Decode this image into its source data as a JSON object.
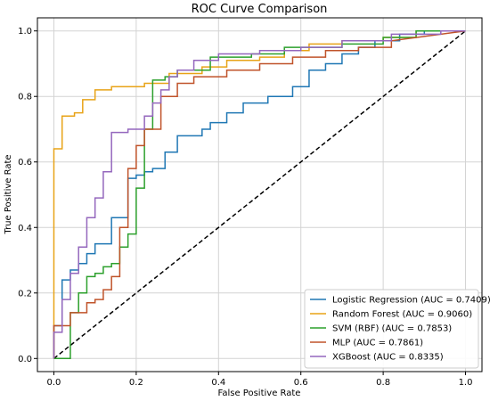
{
  "chart_data": {
    "type": "line",
    "title": "ROC Curve Comparison",
    "xlabel": "False Positive Rate",
    "ylabel": "True Positive Rate",
    "xlim": [
      -0.04,
      1.04
    ],
    "ylim": [
      -0.04,
      1.04
    ],
    "xticks": [
      0.0,
      0.2,
      0.4,
      0.6,
      0.8,
      1.0
    ],
    "yticks": [
      0.0,
      0.2,
      0.4,
      0.6,
      0.8,
      1.0
    ],
    "xtick_labels": [
      "0.0",
      "0.2",
      "0.4",
      "0.6",
      "0.8",
      "1.0"
    ],
    "ytick_labels": [
      "0.0",
      "0.2",
      "0.4",
      "0.6",
      "0.8",
      "1.0"
    ],
    "grid": true,
    "legend_position": "lower-right",
    "diagonal": {
      "x": [
        0,
        1
      ],
      "y": [
        0,
        1
      ],
      "color": "#000000",
      "style": "dashed"
    },
    "series": [
      {
        "name": "Logistic Regression (AUC = 0.7409)",
        "color": "#1f77b4",
        "x": [
          0.0,
          0.0,
          0.02,
          0.02,
          0.04,
          0.04,
          0.06,
          0.06,
          0.08,
          0.08,
          0.1,
          0.1,
          0.14,
          0.14,
          0.18,
          0.18,
          0.2,
          0.2,
          0.22,
          0.22,
          0.24,
          0.24,
          0.27,
          0.27,
          0.3,
          0.3,
          0.36,
          0.36,
          0.38,
          0.38,
          0.42,
          0.42,
          0.46,
          0.46,
          0.52,
          0.52,
          0.58,
          0.58,
          0.62,
          0.62,
          0.66,
          0.66,
          0.7,
          0.7,
          0.74,
          0.74,
          0.78,
          0.78,
          0.84,
          0.84,
          0.9,
          0.9,
          1.0
        ],
        "y": [
          0.0,
          0.1,
          0.1,
          0.24,
          0.24,
          0.27,
          0.27,
          0.29,
          0.29,
          0.32,
          0.32,
          0.35,
          0.35,
          0.43,
          0.43,
          0.55,
          0.55,
          0.56,
          0.56,
          0.57,
          0.57,
          0.58,
          0.58,
          0.63,
          0.63,
          0.68,
          0.68,
          0.7,
          0.7,
          0.72,
          0.72,
          0.75,
          0.75,
          0.78,
          0.78,
          0.8,
          0.8,
          0.83,
          0.83,
          0.88,
          0.88,
          0.9,
          0.9,
          0.93,
          0.93,
          0.95,
          0.95,
          0.97,
          0.97,
          0.99,
          0.99,
          1.0,
          1.0
        ]
      },
      {
        "name": "Random Forest (AUC = 0.9060)",
        "color": "#e8a317",
        "x": [
          0.0,
          0.0,
          0.02,
          0.02,
          0.05,
          0.05,
          0.07,
          0.07,
          0.1,
          0.1,
          0.14,
          0.14,
          0.22,
          0.22,
          0.28,
          0.28,
          0.36,
          0.36,
          0.42,
          0.42,
          0.5,
          0.5,
          0.56,
          0.56,
          0.62,
          0.62,
          0.7,
          0.7,
          0.8,
          0.8,
          0.88,
          0.88,
          1.0
        ],
        "y": [
          0.0,
          0.64,
          0.64,
          0.74,
          0.74,
          0.75,
          0.75,
          0.79,
          0.79,
          0.82,
          0.82,
          0.83,
          0.83,
          0.84,
          0.84,
          0.87,
          0.87,
          0.89,
          0.89,
          0.91,
          0.91,
          0.92,
          0.92,
          0.94,
          0.94,
          0.96,
          0.96,
          0.97,
          0.97,
          0.98,
          0.98,
          1.0,
          1.0
        ]
      },
      {
        "name": "SVM (RBF) (AUC = 0.7853)",
        "color": "#2ca02c",
        "x": [
          0.0,
          0.02,
          0.04,
          0.04,
          0.06,
          0.06,
          0.08,
          0.08,
          0.1,
          0.1,
          0.12,
          0.12,
          0.14,
          0.14,
          0.16,
          0.16,
          0.18,
          0.18,
          0.2,
          0.2,
          0.22,
          0.22,
          0.24,
          0.24,
          0.27,
          0.27,
          0.3,
          0.3,
          0.38,
          0.38,
          0.48,
          0.48,
          0.56,
          0.56,
          0.7,
          0.7,
          0.8,
          0.8,
          0.88,
          0.88,
          1.0
        ],
        "y": [
          0.0,
          0.0,
          0.0,
          0.14,
          0.14,
          0.2,
          0.2,
          0.25,
          0.25,
          0.26,
          0.26,
          0.28,
          0.28,
          0.29,
          0.29,
          0.34,
          0.34,
          0.38,
          0.38,
          0.52,
          0.52,
          0.7,
          0.7,
          0.85,
          0.85,
          0.86,
          0.86,
          0.88,
          0.88,
          0.92,
          0.92,
          0.93,
          0.93,
          0.95,
          0.95,
          0.96,
          0.96,
          0.98,
          0.98,
          1.0,
          1.0
        ]
      },
      {
        "name": "MLP (AUC = 0.7861)",
        "color": "#c0532a",
        "x": [
          0.0,
          0.0,
          0.04,
          0.04,
          0.08,
          0.08,
          0.1,
          0.1,
          0.12,
          0.12,
          0.14,
          0.14,
          0.16,
          0.16,
          0.18,
          0.18,
          0.2,
          0.2,
          0.22,
          0.22,
          0.26,
          0.26,
          0.3,
          0.3,
          0.34,
          0.34,
          0.42,
          0.42,
          0.5,
          0.5,
          0.58,
          0.58,
          0.66,
          0.66,
          0.74,
          0.74,
          0.82,
          0.82,
          1.0
        ],
        "y": [
          0.0,
          0.1,
          0.1,
          0.14,
          0.14,
          0.17,
          0.17,
          0.18,
          0.18,
          0.21,
          0.21,
          0.25,
          0.25,
          0.4,
          0.4,
          0.58,
          0.58,
          0.65,
          0.65,
          0.7,
          0.7,
          0.8,
          0.8,
          0.84,
          0.84,
          0.86,
          0.86,
          0.88,
          0.88,
          0.9,
          0.9,
          0.92,
          0.92,
          0.94,
          0.94,
          0.95,
          0.95,
          0.97,
          1.0
        ]
      },
      {
        "name": "XGBoost (AUC = 0.8335)",
        "color": "#9467bd",
        "x": [
          0.0,
          0.0,
          0.02,
          0.02,
          0.04,
          0.04,
          0.06,
          0.06,
          0.08,
          0.08,
          0.1,
          0.1,
          0.12,
          0.12,
          0.14,
          0.14,
          0.18,
          0.18,
          0.22,
          0.22,
          0.24,
          0.24,
          0.26,
          0.26,
          0.28,
          0.28,
          0.3,
          0.3,
          0.34,
          0.34,
          0.4,
          0.4,
          0.5,
          0.5,
          0.6,
          0.6,
          0.7,
          0.7,
          0.82,
          0.82,
          0.94,
          0.94,
          1.0
        ],
        "y": [
          0.0,
          0.08,
          0.08,
          0.18,
          0.18,
          0.26,
          0.26,
          0.34,
          0.34,
          0.43,
          0.43,
          0.49,
          0.49,
          0.57,
          0.57,
          0.69,
          0.69,
          0.7,
          0.7,
          0.74,
          0.74,
          0.78,
          0.78,
          0.82,
          0.82,
          0.86,
          0.86,
          0.88,
          0.88,
          0.91,
          0.91,
          0.93,
          0.93,
          0.94,
          0.94,
          0.95,
          0.95,
          0.97,
          0.97,
          0.99,
          0.99,
          1.0,
          1.0
        ]
      }
    ]
  }
}
